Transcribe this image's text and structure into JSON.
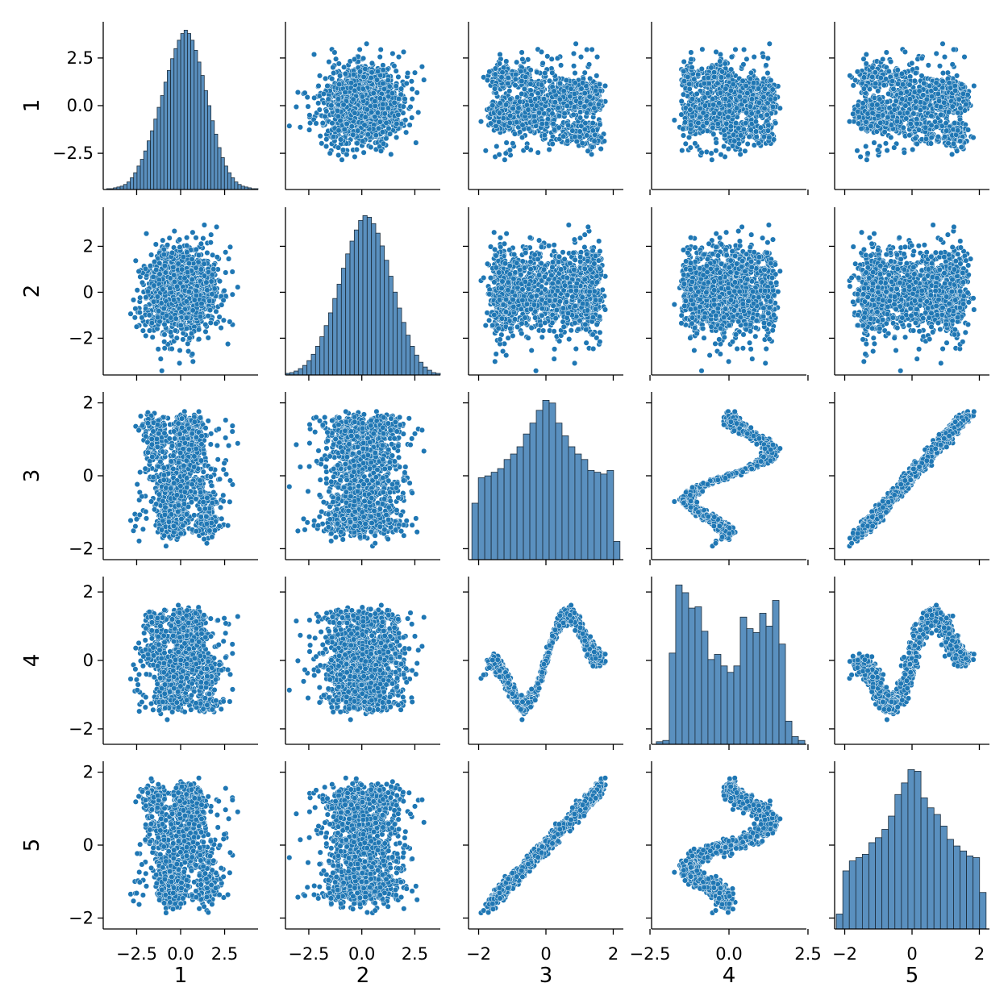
{
  "chart_data": {
    "type": "pairplot",
    "variables": [
      "1",
      "2",
      "3",
      "4",
      "5"
    ],
    "marker_color": "#1f77b4",
    "hist_fill": "#5a90bf",
    "hist_edge": "#1c2c3a",
    "point_edge": "#ffffff",
    "grid": false,
    "axes": {
      "1": {
        "range": [
          -4.4,
          4.4
        ],
        "ticks": [
          -2.5,
          0.0,
          2.5
        ],
        "tick_labels": [
          "−2.5",
          "0.0",
          "2.5"
        ]
      },
      "2": {
        "range": [
          -3.6,
          3.7
        ],
        "ticks": [
          -2.5,
          0.0,
          2.5
        ],
        "y_ticks": [
          -2,
          0,
          2
        ],
        "tick_labels": [
          "−2.5",
          "0.0",
          "2.5"
        ],
        "y_tick_labels": [
          "−2",
          "0",
          "2"
        ]
      },
      "3": {
        "range": [
          -2.3,
          2.3
        ],
        "ticks": [
          -2,
          0,
          2
        ],
        "tick_labels": [
          "−2",
          "0",
          "2"
        ]
      },
      "4": {
        "range": [
          -2.45,
          2.45
        ],
        "ticks": [
          -2.5,
          0.0,
          2.5
        ],
        "y_ticks": [
          -2,
          0,
          2
        ],
        "tick_labels": [
          "−2.5",
          "0.0",
          "2.5"
        ],
        "y_tick_labels": [
          "−2",
          "0",
          "2"
        ]
      },
      "5": {
        "range": [
          -2.3,
          2.3
        ],
        "ticks": [
          -2,
          0,
          2
        ],
        "tick_labels": [
          "−2",
          "0",
          "2"
        ]
      }
    },
    "histograms": {
      "1": {
        "bin_range": [
          -4.2,
          4.4
        ],
        "counts": [
          1,
          1,
          2,
          3,
          4,
          6,
          9,
          14,
          20,
          28,
          36,
          46,
          58,
          70,
          84,
          98,
          112,
          128,
          142,
          156,
          168,
          178,
          186,
          190,
          186,
          178,
          166,
          152,
          136,
          118,
          100,
          82,
          66,
          50,
          38,
          28,
          20,
          14,
          9,
          6,
          4,
          3,
          2,
          1,
          1
        ]
      },
      "2": {
        "bin_range": [
          -3.6,
          3.7
        ],
        "counts": [
          2,
          3,
          5,
          8,
          12,
          18,
          26,
          36,
          48,
          62,
          78,
          96,
          114,
          134,
          152,
          168,
          182,
          194,
          200,
          198,
          190,
          178,
          162,
          144,
          124,
          104,
          84,
          66,
          50,
          36,
          25,
          16,
          10,
          6,
          3,
          2
        ]
      },
      "3": {
        "bin_range": [
          -2.2,
          2.2
        ],
        "counts": [
          62,
          90,
          92,
          96,
          100,
          110,
          116,
          124,
          138,
          150,
          164,
          175,
          172,
          150,
          136,
          124,
          116,
          110,
          98,
          96,
          94,
          98,
          20
        ]
      },
      "4": {
        "bin_range": [
          -2.3,
          2.4
        ],
        "counts": [
          4,
          6,
          142,
          248,
          236,
          212,
          214,
          176,
          132,
          140,
          122,
          112,
          122,
          198,
          180,
          174,
          204,
          184,
          224,
          156,
          36,
          12,
          6
        ]
      },
      "5": {
        "bin_range": [
          -2.25,
          2.2
        ],
        "counts": [
          18,
          70,
          82,
          86,
          90,
          104,
          110,
          120,
          136,
          162,
          176,
          192,
          190,
          158,
          146,
          138,
          124,
          108,
          100,
          94,
          88,
          86,
          44
        ]
      }
    }
  }
}
